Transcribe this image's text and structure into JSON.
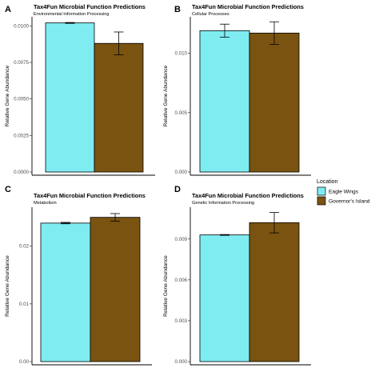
{
  "chart_data": [
    {
      "type": "bar",
      "panel": "A",
      "title": "Tax4Fun Microbial Function Predictions",
      "subtitle": "Environmental Information Processing",
      "ylabel": "Relative Gene Abundance",
      "ylim": [
        0,
        0.0104
      ],
      "yticks": [
        "0.0000",
        "0.0025",
        "0.0050",
        "0.0075",
        "0.0100"
      ],
      "ytick_values": [
        0,
        0.0025,
        0.005,
        0.0075,
        0.01
      ],
      "categories": [
        "Eagle Wings",
        "Governor's Island"
      ],
      "values": [
        0.0102,
        0.0088
      ],
      "errors": [
        3e-05,
        0.00078
      ]
    },
    {
      "type": "bar",
      "panel": "B",
      "title": "Tax4Fun Microbial Function Predictions",
      "subtitle": "Cellular Processes",
      "ylabel": "Relative Gene Abundance",
      "ylim": [
        0,
        0.0128
      ],
      "yticks": [
        "0.000",
        "0.005",
        "0.010"
      ],
      "ytick_values": [
        0,
        0.005,
        0.01
      ],
      "categories": [
        "Eagle Wings",
        "Governor's Island"
      ],
      "values": [
        0.0119,
        0.0117
      ],
      "errors": [
        0.00055,
        0.00095
      ]
    },
    {
      "type": "bar",
      "panel": "C",
      "title": "Tax4Fun Microbial Function Predictions",
      "subtitle": "Metabolism",
      "ylabel": "Relative Gene Abundance",
      "ylim": [
        0,
        0.0262
      ],
      "yticks": [
        "0.00",
        "0.01",
        "0.02"
      ],
      "ytick_values": [
        0,
        0.01,
        0.02
      ],
      "categories": [
        "Eagle Wings",
        "Governor's Island"
      ],
      "values": [
        0.024,
        0.025
      ],
      "errors": [
        0.00012,
        0.00065
      ]
    },
    {
      "type": "bar",
      "panel": "D",
      "title": "Tax4Fun Microbial Function Predictions",
      "subtitle": "Genetic Information Processing",
      "ylabel": "Relative Gene Abundance",
      "ylim": [
        0,
        0.0111
      ],
      "yticks": [
        "0.000",
        "0.003",
        "0.006",
        "0.009"
      ],
      "ytick_values": [
        0,
        0.003,
        0.006,
        0.009
      ],
      "categories": [
        "Eagle Wings",
        "Governor's Island"
      ],
      "values": [
        0.0093,
        0.0102
      ],
      "errors": [
        3e-05,
        0.00075
      ]
    }
  ],
  "legend": {
    "title": "Location",
    "placement": "right",
    "entries": [
      {
        "label": "Eagle Wings",
        "color": "#7fecf2"
      },
      {
        "label": "Governor's Island",
        "color": "#7a5310"
      }
    ]
  },
  "colors": {
    "bar_outline": "#000000",
    "axis": "#000000",
    "tick_text": "#4d4d4d"
  }
}
